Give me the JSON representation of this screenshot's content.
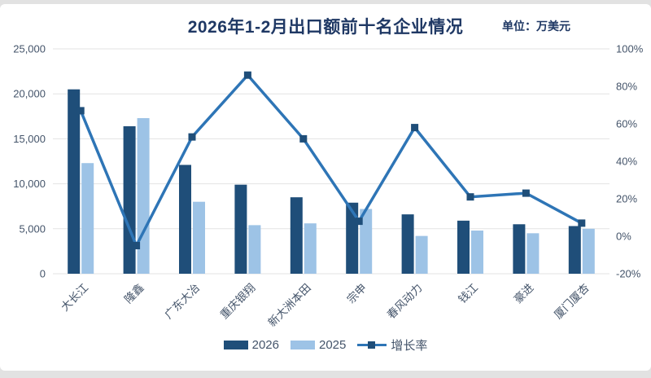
{
  "page": {
    "background": "#e2e2e2",
    "card_background": "#ffffff"
  },
  "header": {
    "title": "2026年1-2月出口额前十名企业情况",
    "unit_label": "单位：万美元"
  },
  "chart_data": {
    "type": "bar",
    "subtype": "grouped-bars-with-line",
    "title": "2026年1-2月出口额前十名企业情况",
    "unit": "万美元",
    "categories": [
      "大长江",
      "隆鑫",
      "广东大冶",
      "重庆银翔",
      "新大洲本田",
      "宗申",
      "春风动力",
      "钱江",
      "豪进",
      "厦门厦杏"
    ],
    "series": [
      {
        "name": "2026",
        "type": "bar",
        "axis": "left",
        "color": "#1f4e79",
        "values": [
          20500,
          16400,
          12100,
          9900,
          8500,
          7900,
          6600,
          5900,
          5500,
          5300
        ]
      },
      {
        "name": "2025",
        "type": "bar",
        "axis": "left",
        "color": "#9dc3e6",
        "values": [
          12300,
          17300,
          8000,
          5400,
          5600,
          7200,
          4200,
          4800,
          4500,
          5000
        ]
      },
      {
        "name": "增长率",
        "type": "line",
        "axis": "right",
        "color": "#2e75b6",
        "marker_color": "#1f4e79",
        "values_percent": [
          67,
          -5,
          53,
          86,
          52,
          8,
          58,
          21,
          23,
          7
        ]
      }
    ],
    "left_axis": {
      "min": 0,
      "max": 25000,
      "tick_labels": [
        "0",
        "5,000",
        "10,000",
        "15,000",
        "20,000",
        "25,000"
      ]
    },
    "right_axis": {
      "min": -20,
      "max": 100,
      "tick_labels": [
        "-20%",
        "0%",
        "20%",
        "40%",
        "60%",
        "80%",
        "100%"
      ]
    },
    "grid": true,
    "gridline_color": "#e3e3e3",
    "axis_label_color": "#44546a",
    "legend_position": "bottom"
  }
}
